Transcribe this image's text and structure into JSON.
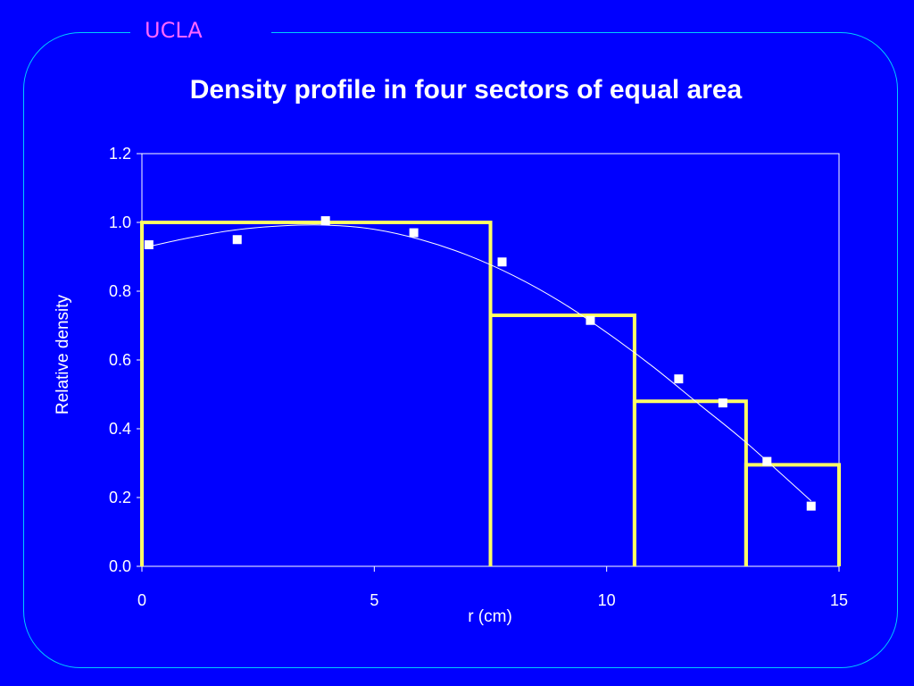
{
  "brand": "UCLA",
  "colors": {
    "background": "#0000ff",
    "frame": "#00ccff",
    "brand": "#ff66ff",
    "step": "#ffff66",
    "markers": "#ffffff"
  },
  "chart_data": {
    "type": "scatter",
    "title": "Density profile in four sectors of equal area",
    "xlabel": "r (cm)",
    "ylabel": "Relative density",
    "xlim": [
      0,
      15
    ],
    "ylim": [
      0,
      1.2
    ],
    "xticks": [
      "0",
      "5",
      "10",
      "15"
    ],
    "yticks": [
      "0.0",
      "0.2",
      "0.4",
      "0.6",
      "0.8",
      "1.0",
      "1.2"
    ],
    "grid": false,
    "series": [
      {
        "kind": "markers",
        "x": [
          0.15,
          2.05,
          3.95,
          5.85,
          7.75,
          9.65,
          11.55,
          12.5,
          13.45,
          14.4
        ],
        "y": [
          0.935,
          0.95,
          1.005,
          0.97,
          0.885,
          0.715,
          0.545,
          0.475,
          0.305,
          0.175
        ]
      },
      {
        "kind": "fit-curve",
        "x": [
          0.15,
          1,
          2,
          3,
          4,
          5,
          6,
          7,
          8,
          9,
          10,
          11,
          12,
          13,
          14.4
        ],
        "y": [
          0.93,
          0.955,
          0.978,
          0.99,
          0.992,
          0.98,
          0.95,
          0.905,
          0.845,
          0.77,
          0.68,
          0.58,
          0.47,
          0.36,
          0.19
        ]
      },
      {
        "kind": "sector-steps",
        "sectors": [
          {
            "r_start": 0,
            "r_end": 7.5,
            "value": 1.0
          },
          {
            "r_start": 7.5,
            "r_end": 10.6,
            "value": 0.73
          },
          {
            "r_start": 10.6,
            "r_end": 13.0,
            "value": 0.48
          },
          {
            "r_start": 13.0,
            "r_end": 15.0,
            "value": 0.295
          }
        ]
      }
    ]
  }
}
